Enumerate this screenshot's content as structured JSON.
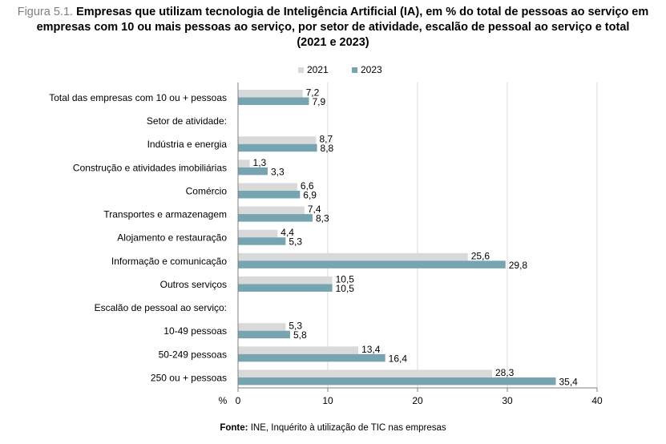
{
  "title": {
    "figure_label": "Figura 5.1.",
    "line1": "Empresas que utilizam tecnologia de Inteligência Artificial (IA), em % do total de pessoas ao serviço em",
    "line2": "empresas com 10 ou mais pessoas ao serviço, por setor de atividade, escalão de pessoal ao serviço e total",
    "line3": "(2021 e 2023)"
  },
  "source": {
    "label": "Fonte:",
    "text": "INE, Inquérito à utilização de TIC nas empresas"
  },
  "colors": {
    "s2021": "#d9d9d9",
    "s2023": "#76a5b1",
    "axis": "#7f7f7f",
    "grid": "#d9d9d9"
  },
  "chart_data": {
    "type": "bar",
    "orientation": "horizontal",
    "x_unit_label": "%",
    "xlim": [
      0,
      40
    ],
    "x_ticks": [
      0,
      10,
      20,
      30,
      40
    ],
    "grid": "vertical",
    "legend_position": "top",
    "categories": [
      "Total das empresas com 10 ou + pessoas",
      "Setor de atividade:",
      "Indústria e energia",
      "Construção e atividades imobiliárias",
      "Comércio",
      "Transportes e armazenagem",
      "Alojamento e restauração",
      "Informação e comunicação",
      "Outros serviços",
      "Escalão de pessoal ao serviço:",
      "10-49 pessoas",
      "50-249 pessoas",
      "250 ou + pessoas"
    ],
    "series": [
      {
        "name": "2021",
        "values": [
          7.2,
          null,
          8.7,
          1.3,
          6.6,
          7.4,
          4.4,
          25.6,
          10.5,
          null,
          5.3,
          13.4,
          28.3
        ],
        "labels": [
          "7,2",
          "",
          "8,7",
          "1,3",
          "6,6",
          "7,4",
          "4,4",
          "25,6",
          "10,5",
          "",
          "5,3",
          "13,4",
          "28,3"
        ]
      },
      {
        "name": "2023",
        "values": [
          7.9,
          null,
          8.8,
          3.3,
          6.9,
          8.3,
          5.3,
          29.8,
          10.5,
          null,
          5.8,
          16.4,
          35.4
        ],
        "labels": [
          "7,9",
          "",
          "8,8",
          "3,3",
          "6,9",
          "8,3",
          "5,3",
          "29,8",
          "10,5",
          "",
          "5,8",
          "16,4",
          "35,4"
        ]
      }
    ]
  }
}
